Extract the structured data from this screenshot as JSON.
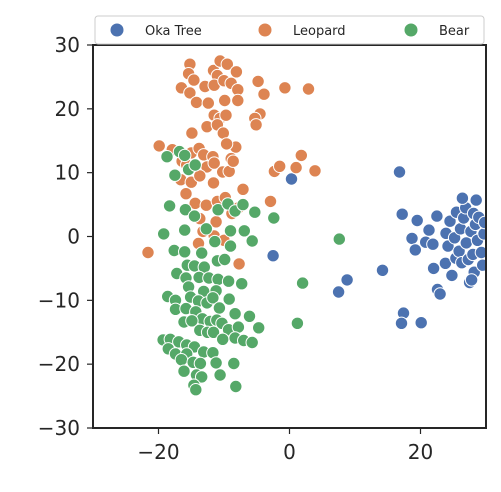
{
  "chart_data": {
    "type": "scatter",
    "title": "",
    "xlabel": "",
    "ylabel": "",
    "xlim": [
      -30,
      30
    ],
    "ylim": [
      -30,
      30
    ],
    "xticks": [
      -20,
      0,
      20
    ],
    "yticks": [
      30,
      20,
      10,
      0,
      -10,
      -20,
      -30
    ],
    "grid": false,
    "legend": {
      "placement": "top",
      "columns": 3
    },
    "series": [
      {
        "name": "Oka Tree",
        "color": "#4c72b0",
        "points": [
          [
            0.3,
            9
          ],
          [
            -2.5,
            -3
          ],
          [
            7.5,
            -8.7
          ],
          [
            8.8,
            -6.8
          ],
          [
            14.2,
            -5.3
          ],
          [
            16.8,
            10.1
          ],
          [
            17.2,
            3.5
          ],
          [
            17.4,
            -12.0
          ],
          [
            17.1,
            -13.6
          ],
          [
            20.1,
            -13.5
          ],
          [
            18.7,
            -0.3
          ],
          [
            19.2,
            -2.1
          ],
          [
            19.5,
            2.5
          ],
          [
            20.8,
            -0.9
          ],
          [
            21.3,
            1.0
          ],
          [
            21.9,
            -1.2
          ],
          [
            22.5,
            3.2
          ],
          [
            22.0,
            -5.0
          ],
          [
            22.6,
            -8.3
          ],
          [
            23.0,
            -9.0
          ],
          [
            23.8,
            -4.2
          ],
          [
            23.9,
            0.5
          ],
          [
            24.2,
            -1.5
          ],
          [
            24.5,
            2.4
          ],
          [
            24.8,
            -6.1
          ],
          [
            25.2,
            -0.2
          ],
          [
            25.5,
            3.8
          ],
          [
            25.4,
            -3.4
          ],
          [
            25.9,
            -2.3
          ],
          [
            26.1,
            1.2
          ],
          [
            26.3,
            -4.1
          ],
          [
            26.6,
            2.9
          ],
          [
            26.9,
            4.5
          ],
          [
            26.4,
            6.0
          ],
          [
            27.0,
            -1.0
          ],
          [
            27.3,
            -3.6
          ],
          [
            27.7,
            0.8
          ],
          [
            28.1,
            3.6
          ],
          [
            28.0,
            -2.8
          ],
          [
            28.4,
            1.9
          ],
          [
            28.7,
            -0.6
          ],
          [
            28.2,
            -5.6
          ],
          [
            27.5,
            -7.2
          ],
          [
            28.9,
            3.0
          ],
          [
            29.3,
            -2.5
          ],
          [
            28.5,
            5.7
          ],
          [
            29.5,
            -4.5
          ],
          [
            29.7,
            0.4
          ],
          [
            29.8,
            2.2
          ],
          [
            27.8,
            -6.8
          ]
        ]
      },
      {
        "name": "Leopard",
        "color": "#dd8452",
        "points": [
          [
            -15.2,
            27.0
          ],
          [
            -11.6,
            26.0
          ],
          [
            -10.6,
            27.5
          ],
          [
            -9.5,
            27.0
          ],
          [
            -11.0,
            25.2
          ],
          [
            -8.1,
            25.8
          ],
          [
            -15.4,
            25.5
          ],
          [
            -14.6,
            24.5
          ],
          [
            -16.5,
            23.3
          ],
          [
            -12.9,
            23.5
          ],
          [
            -11.5,
            23.7
          ],
          [
            -10.0,
            24.4
          ],
          [
            -8.9,
            24.0
          ],
          [
            -7.9,
            23.0
          ],
          [
            -4.8,
            24.3
          ],
          [
            -3.9,
            22.3
          ],
          [
            -0.7,
            23.3
          ],
          [
            2.9,
            23.1
          ],
          [
            -15.2,
            22.5
          ],
          [
            -14.2,
            21.0
          ],
          [
            -12.4,
            20.9
          ],
          [
            -9.9,
            21.3
          ],
          [
            -7.9,
            21.3
          ],
          [
            -4.5,
            19.2
          ],
          [
            -5.3,
            18.5
          ],
          [
            -5.1,
            17.5
          ],
          [
            -11.5,
            19.0
          ],
          [
            -10.6,
            18.5
          ],
          [
            -9.7,
            19.0
          ],
          [
            -12.6,
            17.2
          ],
          [
            -11.0,
            17.5
          ],
          [
            -14.9,
            16.2
          ],
          [
            -10.1,
            16.2
          ],
          [
            -8.2,
            14.0
          ],
          [
            -19.9,
            14.2
          ],
          [
            -17.9,
            13.6
          ],
          [
            -15.0,
            13.1
          ],
          [
            -13.8,
            13.8
          ],
          [
            -13.1,
            12.8
          ],
          [
            -11.7,
            12.5
          ],
          [
            -9.6,
            14.5
          ],
          [
            -8.9,
            12.2
          ],
          [
            -16.4,
            11.8
          ],
          [
            -15.7,
            11.2
          ],
          [
            -12.6,
            10.9
          ],
          [
            -11.5,
            11.5
          ],
          [
            -10.2,
            10.1
          ],
          [
            -9.2,
            10.2
          ],
          [
            -8.6,
            11.8
          ],
          [
            -16.6,
            8.9
          ],
          [
            -15.0,
            8.5
          ],
          [
            -13.7,
            9.5
          ],
          [
            -11.6,
            8.4
          ],
          [
            -15.8,
            6.7
          ],
          [
            -14.4,
            5.2
          ],
          [
            -12.7,
            4.9
          ],
          [
            -11.0,
            5.5
          ],
          [
            -9.8,
            6.1
          ],
          [
            -7.1,
            7.4
          ],
          [
            -8.8,
            3.6
          ],
          [
            -7.8,
            4.5
          ],
          [
            -13.7,
            2.8
          ],
          [
            -11.2,
            2.3
          ],
          [
            -13.2,
            0.8
          ],
          [
            -11.5,
            0.1
          ],
          [
            -10.0,
            -0.6
          ],
          [
            -21.6,
            -2.5
          ],
          [
            -13.9,
            -1.1
          ],
          [
            -7.7,
            -4.3
          ],
          [
            -2.9,
            5.5
          ],
          [
            -2.3,
            10.2
          ],
          [
            -1.5,
            11.0
          ],
          [
            1.0,
            10.8
          ],
          [
            1.8,
            12.7
          ],
          [
            3.9,
            10.3
          ]
        ]
      },
      {
        "name": "Bear",
        "color": "#55a868",
        "points": [
          [
            -18.7,
            12.5
          ],
          [
            -16.8,
            13.3
          ],
          [
            -16.0,
            12.7
          ],
          [
            -15.4,
            10.5
          ],
          [
            -17.5,
            9.6
          ],
          [
            -14.4,
            11.2
          ],
          [
            -18.3,
            4.8
          ],
          [
            -15.9,
            4.2
          ],
          [
            -14.5,
            3.2
          ],
          [
            -10.9,
            4.2
          ],
          [
            -9.4,
            5.1
          ],
          [
            -8.3,
            4.0
          ],
          [
            -7.1,
            5.0
          ],
          [
            -5.3,
            3.8
          ],
          [
            -2.4,
            2.9
          ],
          [
            -19.2,
            0.4
          ],
          [
            -16.0,
            1.0
          ],
          [
            -12.7,
            1.2
          ],
          [
            -11.4,
            -0.8
          ],
          [
            -9.0,
            0.9
          ],
          [
            -9.0,
            -1.5
          ],
          [
            -6.9,
            0.9
          ],
          [
            -5.7,
            -0.7
          ],
          [
            -17.6,
            -2.2
          ],
          [
            -16.0,
            -2.4
          ],
          [
            -13.4,
            -2.6
          ],
          [
            -11.0,
            -3.8
          ],
          [
            -9.9,
            -3.6
          ],
          [
            -15.6,
            -4.5
          ],
          [
            -14.5,
            -4.6
          ],
          [
            -13.0,
            -4.8
          ],
          [
            -17.2,
            -5.8
          ],
          [
            -15.8,
            -6.5
          ],
          [
            -13.8,
            -6.4
          ],
          [
            -12.3,
            -6.5
          ],
          [
            -10.9,
            -6.7
          ],
          [
            -9.3,
            -7.0
          ],
          [
            -7.3,
            -7.4
          ],
          [
            -15.4,
            -7.9
          ],
          [
            -13.1,
            -8.6
          ],
          [
            -11.2,
            -8.5
          ],
          [
            -18.6,
            -9.4
          ],
          [
            -17.4,
            -10.0
          ],
          [
            -15.1,
            -9.5
          ],
          [
            -13.9,
            -10.1
          ],
          [
            -12.6,
            -10.4
          ],
          [
            -11.7,
            -9.6
          ],
          [
            -10.7,
            -11.2
          ],
          [
            -9.2,
            -9.8
          ],
          [
            -8.3,
            -12.1
          ],
          [
            -17.4,
            -11.4
          ],
          [
            -15.8,
            -11.3
          ],
          [
            -14.3,
            -11.8
          ],
          [
            -13.3,
            -12.9
          ],
          [
            -12.1,
            -13.3
          ],
          [
            -11.1,
            -13.1
          ],
          [
            -10.3,
            -13.6
          ],
          [
            -9.3,
            -14.6
          ],
          [
            -7.8,
            -14.2
          ],
          [
            -16.1,
            -13.4
          ],
          [
            -14.9,
            -13.2
          ],
          [
            -13.7,
            -14.7
          ],
          [
            -12.5,
            -15.0
          ],
          [
            -11.6,
            -15.0
          ],
          [
            -10.2,
            -16.1
          ],
          [
            -8.3,
            -15.9
          ],
          [
            -7.0,
            -16.3
          ],
          [
            -5.7,
            -16.6
          ],
          [
            -19.3,
            -16.2
          ],
          [
            -18.2,
            -16.1
          ],
          [
            -16.9,
            -16.5
          ],
          [
            -15.7,
            -17.0
          ],
          [
            -14.5,
            -17.3
          ],
          [
            -13.1,
            -18.1
          ],
          [
            -11.7,
            -18.2
          ],
          [
            -18.5,
            -17.6
          ],
          [
            -17.4,
            -18.4
          ],
          [
            -15.7,
            -18.4
          ],
          [
            -16.5,
            -19.3
          ],
          [
            -14.7,
            -19.7
          ],
          [
            -13.6,
            -19.9
          ],
          [
            -11.2,
            -19.8
          ],
          [
            -8.5,
            -19.9
          ],
          [
            -16.1,
            -21.1
          ],
          [
            -14.2,
            -21.7
          ],
          [
            -13.4,
            -22.0
          ],
          [
            -10.6,
            -21.7
          ],
          [
            -14.6,
            -23.3
          ],
          [
            -8.2,
            -23.5
          ],
          [
            -14.3,
            -24.0
          ],
          [
            -6.1,
            -12.5
          ],
          [
            -4.7,
            -14.3
          ],
          [
            2.0,
            -7.3
          ],
          [
            1.2,
            -13.6
          ],
          [
            7.6,
            -0.4
          ]
        ]
      }
    ]
  }
}
